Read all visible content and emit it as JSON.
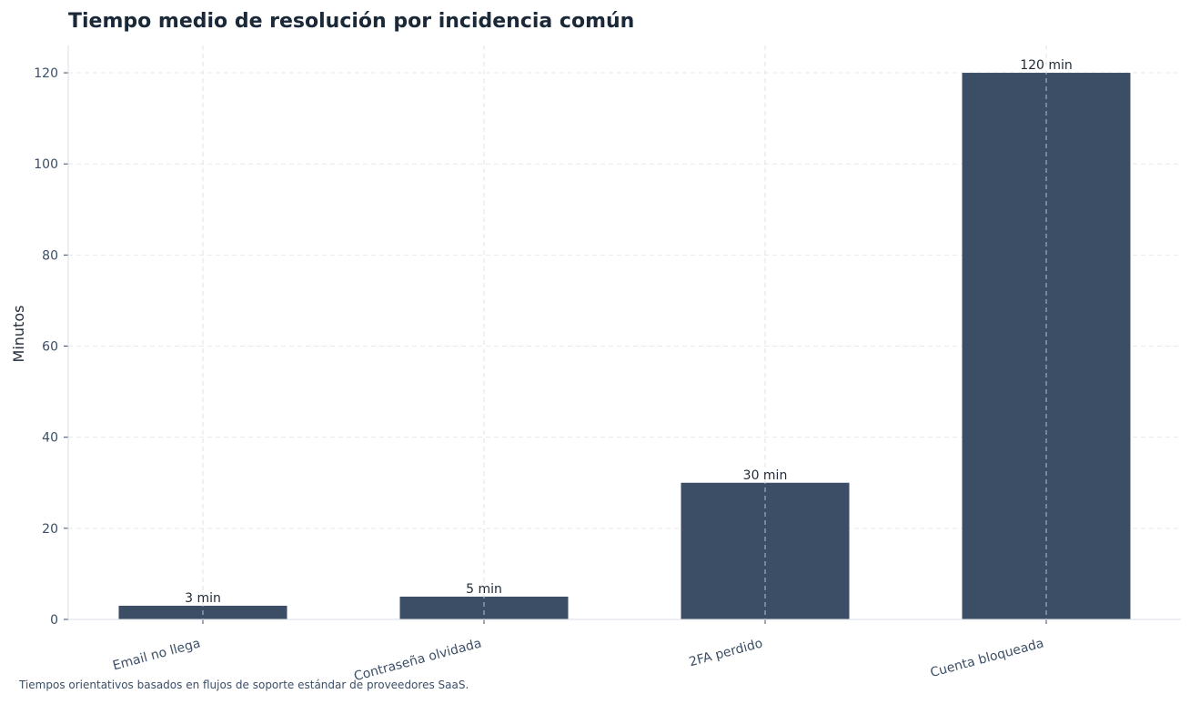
{
  "chart_data": {
    "type": "bar",
    "title": "Tiempo medio de resolución por incidencia común",
    "xlabel": "",
    "ylabel": "Minutos",
    "categories": [
      "Email no llega",
      "Contraseña olvidada",
      "2FA perdido",
      "Cuenta bloqueada"
    ],
    "values": [
      3,
      5,
      30,
      120
    ],
    "data_labels": [
      "3 min",
      "5 min",
      "30 min",
      "120 min"
    ],
    "yticks": [
      0,
      20,
      40,
      60,
      80,
      100,
      120
    ],
    "ylim": [
      0,
      126
    ],
    "grid": true,
    "footnote": "Tiempos orientativos basados en flujos de soporte estándar de proveedores SaaS.",
    "colors": {
      "bar": "#3b4e66",
      "title": "#1a2838",
      "axis_text": "#3b4e66",
      "label_text": "#1f2a36",
      "grid": "#e6e9ee",
      "axis_line": "#d9dde3"
    }
  }
}
